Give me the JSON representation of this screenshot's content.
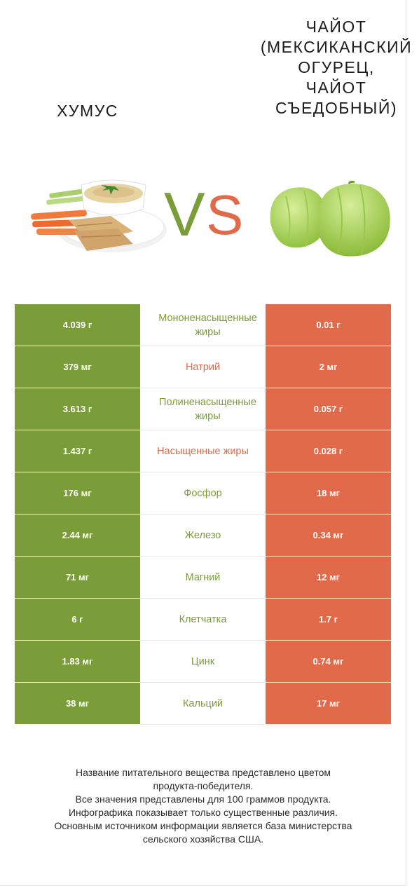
{
  "left_food": {
    "title": "Хумус",
    "icon": "hummus-bowl-image",
    "color": "#7a9d3a"
  },
  "right_food": {
    "title": "Чайот\n(мексиканский\nогурец,\nчайот\nсъедобный)",
    "icon": "chayote-image",
    "color": "#e06a4a"
  },
  "vs": {
    "v": "V",
    "s": "S"
  },
  "chart_data": {
    "type": "table",
    "rows": [
      {
        "name": "Мононенасыщенные жиры",
        "left": "4.039 г",
        "right": "0.01 г",
        "winner": "left"
      },
      {
        "name": "Натрий",
        "left": "379 мг",
        "right": "2 мг",
        "winner": "right"
      },
      {
        "name": "Полиненасыщенные жиры",
        "left": "3.613 г",
        "right": "0.057 г",
        "winner": "left"
      },
      {
        "name": "Насыщенные жиры",
        "left": "1.437 г",
        "right": "0.028 г",
        "winner": "right"
      },
      {
        "name": "Фосфор",
        "left": "176 мг",
        "right": "18 мг",
        "winner": "left"
      },
      {
        "name": "Железо",
        "left": "2.44 мг",
        "right": "0.34 мг",
        "winner": "left"
      },
      {
        "name": "Магний",
        "left": "71 мг",
        "right": "12 мг",
        "winner": "left"
      },
      {
        "name": "Клетчатка",
        "left": "6 г",
        "right": "1.7 г",
        "winner": "left"
      },
      {
        "name": "Цинк",
        "left": "1.83 мг",
        "right": "0.74 мг",
        "winner": "left"
      },
      {
        "name": "Кальций",
        "left": "38 мг",
        "right": "17 мг",
        "winner": "left"
      }
    ]
  },
  "footer": {
    "lines": [
      "Название питательного вещества представлено цветом",
      "продукта-победителя.",
      "Все значения представлены для 100 граммов продукта.",
      "Инфографика показывает только существенные различия.",
      "Основным источником информации является база министерства",
      "сельского хозяйства США."
    ]
  }
}
